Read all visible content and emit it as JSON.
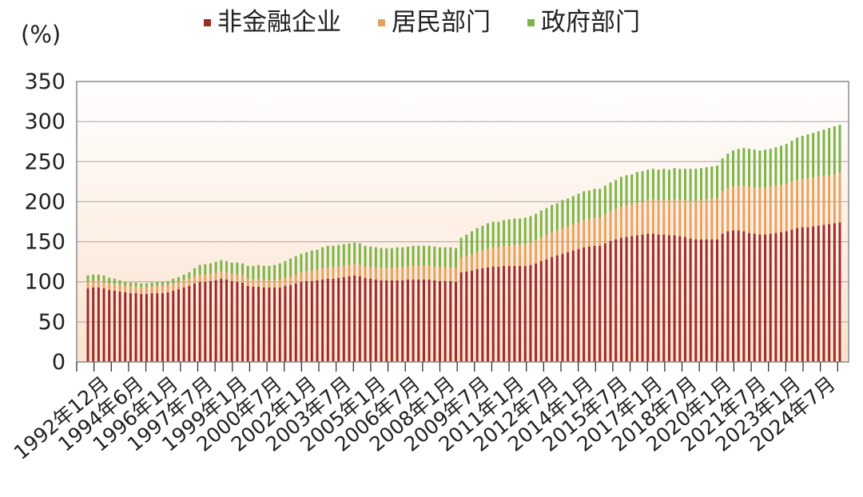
{
  "chart_data": {
    "type": "bar",
    "stacked": true,
    "unit_label": "(%)",
    "ylim": [
      0,
      350
    ],
    "yticks": [
      0,
      50,
      100,
      150,
      200,
      250,
      300,
      350
    ],
    "grid": true,
    "legend_position": "top",
    "xtick_labels": [
      "1992年12月",
      "1994年6月",
      "1996年1月",
      "1997年7月",
      "1999年1月",
      "2000年7月",
      "2002年1月",
      "2003年7月",
      "2005年1月",
      "2006年7月",
      "2008年1月",
      "2009年7月",
      "2011年1月",
      "2012年7月",
      "2014年1月",
      "2015年7月",
      "2017年1月",
      "2018年7月",
      "2020年1月",
      "2021年7月",
      "2023年1月",
      "2024年7月"
    ],
    "series": [
      {
        "name": "非金融企业",
        "color": "#9e2a2b",
        "values": [
          92,
          93,
          93,
          92,
          90,
          89,
          88,
          87,
          86,
          86,
          85,
          85,
          86,
          86,
          86,
          87,
          89,
          91,
          93,
          95,
          98,
          100,
          100,
          101,
          102,
          104,
          103,
          101,
          100,
          99,
          95,
          94,
          94,
          93,
          93,
          93,
          93,
          95,
          96,
          98,
          100,
          101,
          101,
          102,
          103,
          104,
          104,
          105,
          106,
          107,
          108,
          107,
          105,
          104,
          103,
          102,
          102,
          102,
          102,
          102,
          103,
          103,
          103,
          103,
          103,
          102,
          101,
          101,
          101,
          100,
          112,
          113,
          114,
          116,
          117,
          118,
          119,
          119,
          120,
          120,
          120,
          120,
          120,
          121,
          123,
          126,
          128,
          131,
          133,
          135,
          137,
          139,
          141,
          143,
          144,
          145,
          145,
          148,
          151,
          153,
          155,
          156,
          157,
          158,
          159,
          160,
          160,
          159,
          159,
          158,
          158,
          157,
          156,
          154,
          153,
          153,
          153,
          153,
          153,
          160,
          163,
          164,
          164,
          163,
          161,
          160,
          159,
          159,
          160,
          161,
          162,
          163,
          165,
          167,
          168,
          168,
          169,
          170,
          171,
          172,
          173,
          174
        ]
      },
      {
        "name": "居民部门",
        "color": "#e8a25f",
        "values": [
          8,
          8,
          8,
          8,
          8,
          8,
          8,
          8,
          8,
          8,
          8,
          8,
          8,
          9,
          9,
          9,
          9,
          9,
          9,
          9,
          9,
          9,
          9,
          9,
          9,
          9,
          9,
          9,
          9,
          9,
          9,
          9,
          9,
          9,
          9,
          9,
          10,
          10,
          11,
          11,
          12,
          12,
          13,
          13,
          14,
          14,
          14,
          14,
          14,
          14,
          14,
          14,
          14,
          14,
          15,
          15,
          15,
          15,
          16,
          16,
          16,
          17,
          17,
          17,
          17,
          17,
          17,
          17,
          17,
          17,
          18,
          19,
          20,
          21,
          22,
          23,
          24,
          24,
          25,
          25,
          26,
          26,
          27,
          28,
          29,
          29,
          30,
          31,
          31,
          32,
          32,
          33,
          33,
          34,
          34,
          35,
          35,
          36,
          37,
          38,
          39,
          40,
          40,
          41,
          41,
          42,
          43,
          43,
          44,
          44,
          45,
          45,
          46,
          47,
          48,
          49,
          50,
          51,
          52,
          53,
          54,
          55,
          56,
          57,
          58,
          58,
          58,
          59,
          59,
          59,
          59,
          59,
          60,
          60,
          60,
          61,
          61,
          61,
          61,
          61,
          61,
          62
        ]
      },
      {
        "name": "政府部门",
        "color": "#7ab648",
        "values": [
          8,
          8,
          8,
          8,
          7,
          7,
          6,
          5,
          5,
          5,
          5,
          5,
          5,
          5,
          5,
          5,
          6,
          6,
          7,
          8,
          10,
          12,
          13,
          13,
          14,
          14,
          14,
          14,
          15,
          15,
          16,
          17,
          18,
          18,
          18,
          19,
          20,
          21,
          22,
          23,
          23,
          24,
          25,
          25,
          26,
          27,
          27,
          27,
          27,
          27,
          27,
          27,
          26,
          26,
          25,
          25,
          25,
          25,
          25,
          25,
          25,
          25,
          25,
          25,
          25,
          25,
          25,
          25,
          25,
          25,
          25,
          27,
          29,
          30,
          31,
          32,
          32,
          32,
          32,
          33,
          33,
          33,
          33,
          33,
          33,
          34,
          34,
          34,
          34,
          35,
          35,
          35,
          36,
          36,
          36,
          36,
          36,
          36,
          36,
          36,
          37,
          37,
          37,
          38,
          38,
          38,
          38,
          38,
          38,
          38,
          39,
          39,
          39,
          40,
          40,
          40,
          40,
          40,
          40,
          41,
          43,
          45,
          46,
          47,
          47,
          47,
          47,
          47,
          47,
          48,
          49,
          50,
          51,
          53,
          54,
          55,
          56,
          57,
          58,
          59,
          60,
          60
        ]
      }
    ]
  }
}
